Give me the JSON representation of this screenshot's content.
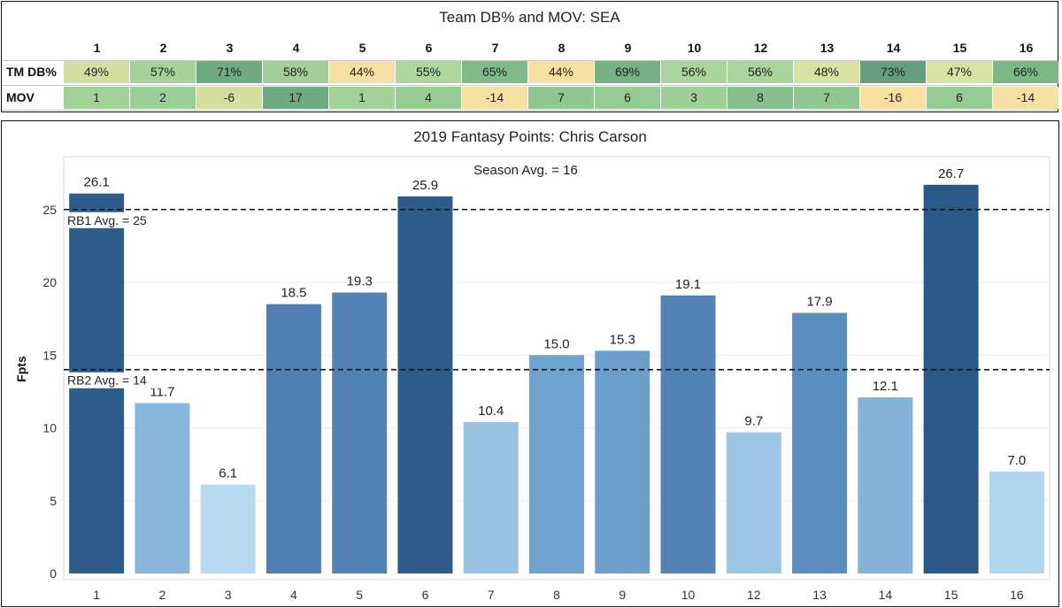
{
  "team_table": {
    "title": "Team DB% and MOV: SEA",
    "weeks": [
      "1",
      "2",
      "3",
      "4",
      "5",
      "6",
      "7",
      "8",
      "9",
      "10",
      "12",
      "13",
      "14",
      "15",
      "16"
    ],
    "rows": [
      {
        "label": "TM DB%",
        "values": [
          "49%",
          "57%",
          "71%",
          "58%",
          "44%",
          "55%",
          "65%",
          "44%",
          "69%",
          "56%",
          "56%",
          "48%",
          "73%",
          "47%",
          "66%"
        ],
        "colors": [
          "#d2dfa1",
          "#a6d29a",
          "#6fab82",
          "#a2cf98",
          "#f6e1a2",
          "#aed59c",
          "#7fbb8a",
          "#f6e1a2",
          "#76b286",
          "#a9d49b",
          "#a9d49b",
          "#d8e2a2",
          "#659e7c",
          "#dbe3a3",
          "#7ab887"
        ]
      },
      {
        "label": "MOV",
        "values": [
          "1",
          "2",
          "-6",
          "17",
          "1",
          "4",
          "-14",
          "7",
          "6",
          "3",
          "8",
          "7",
          "-16",
          "6",
          "-14"
        ],
        "colors": [
          "#a3d19a",
          "#9bcf97",
          "#d2dfa1",
          "#6fab82",
          "#a3d19a",
          "#97cd95",
          "#f6e1a2",
          "#8fc792",
          "#94ca94",
          "#9ecf98",
          "#87c08f",
          "#8fc792",
          "#f8e0a0",
          "#94ca94",
          "#f6e1a2"
        ]
      }
    ]
  },
  "chart_data": {
    "type": "bar",
    "title": "2019 Fantasy Points: Chris Carson",
    "xlabel": "",
    "ylabel": "Fpts",
    "categories": [
      "1",
      "2",
      "3",
      "4",
      "5",
      "6",
      "7",
      "8",
      "9",
      "10",
      "12",
      "13",
      "14",
      "15",
      "16"
    ],
    "values": [
      26.1,
      11.7,
      6.1,
      18.5,
      19.3,
      25.9,
      10.4,
      15.0,
      15.3,
      19.1,
      9.7,
      17.9,
      12.1,
      26.7,
      7.0
    ],
    "value_labels": [
      "26.1",
      "11.7",
      "6.1",
      "18.5",
      "19.3",
      "25.9",
      "10.4",
      "15.0",
      "15.3",
      "19.1",
      "9.7",
      "17.9",
      "12.1",
      "26.7",
      "7.0"
    ],
    "bar_colors": [
      "#2e5c8a",
      "#87b6dc",
      "#b8daf0",
      "#4f7fb2",
      "#5283b5",
      "#2e5c8a",
      "#99c3e3",
      "#70a3cf",
      "#6d9fcc",
      "#5283b5",
      "#9dc5e4",
      "#5b8dbe",
      "#84b3da",
      "#2a5888",
      "#b0d5ee"
    ],
    "ylim": [
      0,
      28
    ],
    "yticks": [
      0,
      5,
      10,
      15,
      20,
      25
    ],
    "ytick_labels": [
      "0",
      "5",
      "10",
      "15",
      "20",
      "25"
    ],
    "reference_lines": [
      {
        "value": 25,
        "label": "RB1 Avg. = 25"
      },
      {
        "value": 14,
        "label": "RB2 Avg. = 14"
      }
    ],
    "season_avg_label": "Season Avg. = 16",
    "grid": true
  }
}
